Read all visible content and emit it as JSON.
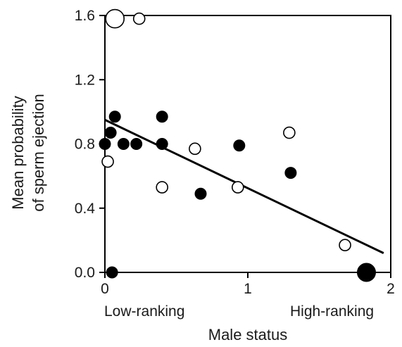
{
  "chart_data": {
    "type": "scatter",
    "title": "",
    "xlabel": "Male status",
    "ylabel_lines": [
      "Mean probability",
      "of sperm ejection"
    ],
    "xlim": [
      0,
      2
    ],
    "ylim": [
      0,
      1.6
    ],
    "x_ticks": [
      0,
      1,
      2
    ],
    "x_tick_labels": [
      "0",
      "1",
      "2"
    ],
    "y_ticks": [
      0.0,
      0.4,
      0.8,
      1.2,
      1.6
    ],
    "y_tick_labels": [
      "0.0",
      "0.4",
      "0.8",
      "1.2",
      "1.6"
    ],
    "x_annotations": [
      "Low-ranking",
      "High-ranking"
    ],
    "grid": false,
    "legend": "none",
    "colors": {
      "filled": "#000000",
      "open_fill": "#ffffff",
      "stroke": "#000000"
    },
    "series": [
      {
        "marker": "filled",
        "points": [
          {
            "x": 0.0,
            "y": 0.8,
            "size": 1
          },
          {
            "x": 0.04,
            "y": 0.87,
            "size": 1
          },
          {
            "x": 0.07,
            "y": 0.97,
            "size": 1
          },
          {
            "x": 0.05,
            "y": 0.0,
            "size": 1
          },
          {
            "x": 0.13,
            "y": 0.8,
            "size": 1
          },
          {
            "x": 0.22,
            "y": 0.8,
            "size": 1
          },
          {
            "x": 0.4,
            "y": 0.97,
            "size": 1
          },
          {
            "x": 0.4,
            "y": 0.8,
            "size": 1
          },
          {
            "x": 0.67,
            "y": 0.49,
            "size": 1
          },
          {
            "x": 0.94,
            "y": 0.79,
            "size": 1
          },
          {
            "x": 1.3,
            "y": 0.62,
            "size": 1
          },
          {
            "x": 1.83,
            "y": 0.0,
            "size": 2
          }
        ]
      },
      {
        "marker": "open",
        "points": [
          {
            "x": 0.07,
            "y": 1.58,
            "size": 2
          },
          {
            "x": 0.24,
            "y": 1.58,
            "size": 1
          },
          {
            "x": 0.02,
            "y": 0.69,
            "size": 1
          },
          {
            "x": 0.4,
            "y": 0.53,
            "size": 1
          },
          {
            "x": 0.63,
            "y": 0.77,
            "size": 1
          },
          {
            "x": 0.93,
            "y": 0.53,
            "size": 1
          },
          {
            "x": 1.29,
            "y": 0.87,
            "size": 1
          },
          {
            "x": 1.68,
            "y": 0.17,
            "size": 1
          }
        ]
      }
    ],
    "fit_line": {
      "x": [
        0.0,
        1.95
      ],
      "y": [
        0.95,
        0.12
      ]
    }
  }
}
